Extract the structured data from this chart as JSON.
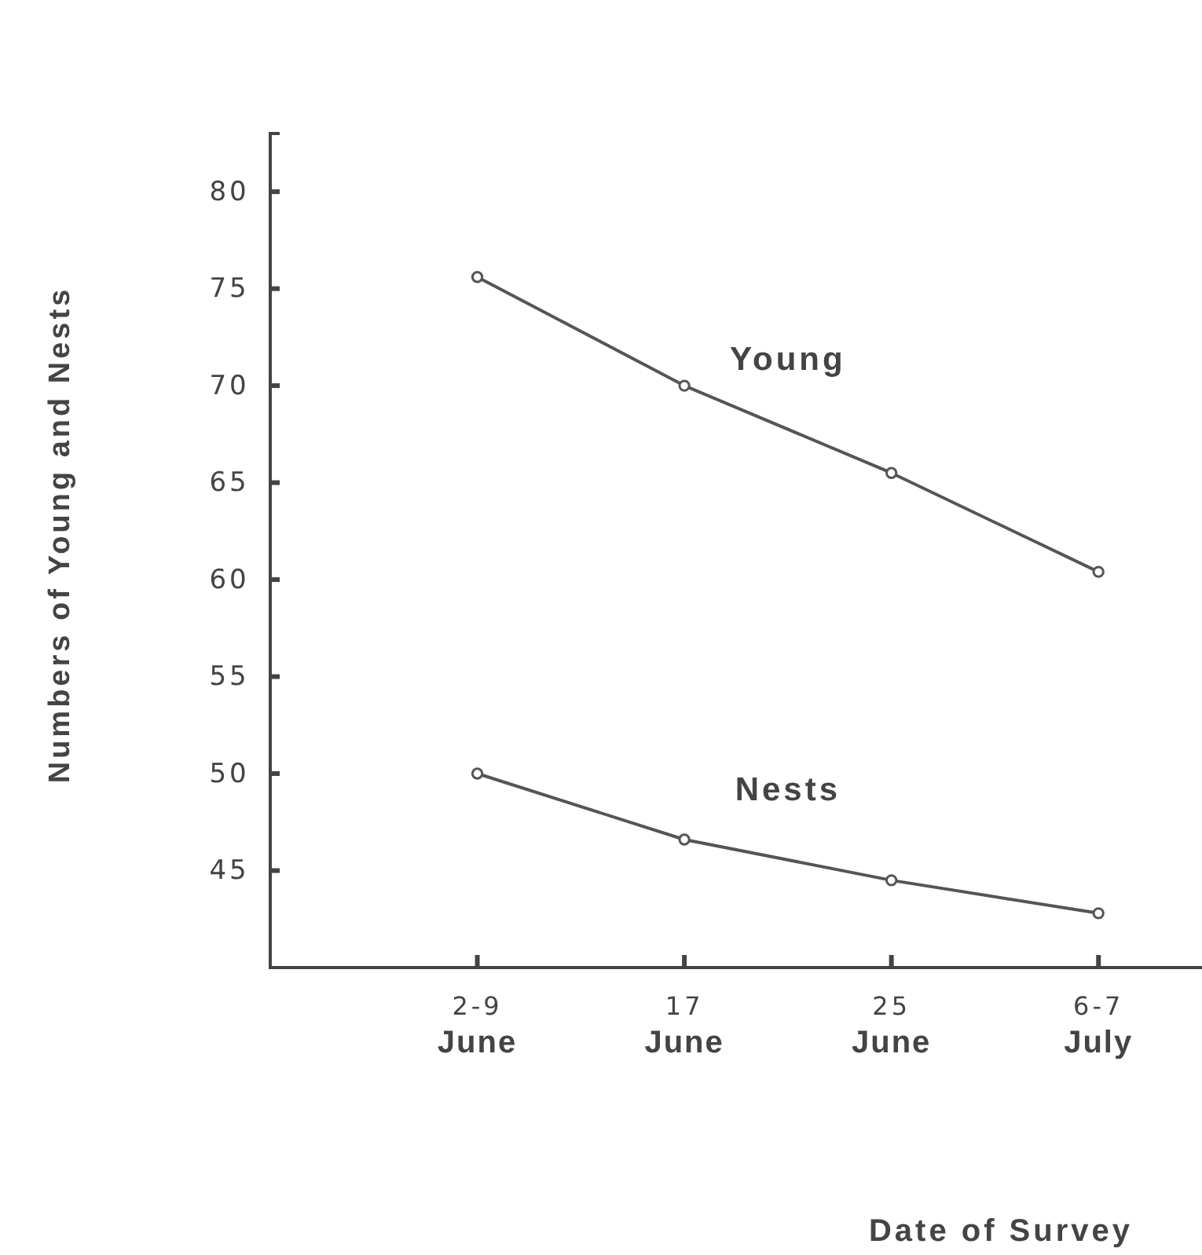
{
  "chart_data": {
    "type": "line",
    "xlabel": "Date of Survey",
    "ylabel": "Numbers of Young and Nests",
    "categories": [
      "2-9\nJune",
      "17\nJune",
      "25\nJune",
      "6-7\nJuly"
    ],
    "series": [
      {
        "name": "Young",
        "color": "#555555",
        "values": [
          75.6,
          70,
          65.5,
          60.4
        ]
      },
      {
        "name": "Nests",
        "color": "#555555",
        "values": [
          50,
          46.6,
          44.5,
          42.8
        ]
      }
    ],
    "ylim": [
      40,
      83
    ],
    "yticks": [
      45,
      50,
      55,
      60,
      65,
      70,
      75,
      80
    ],
    "marker": "circle",
    "line_style": "solid",
    "grid": false,
    "legend": false
  }
}
